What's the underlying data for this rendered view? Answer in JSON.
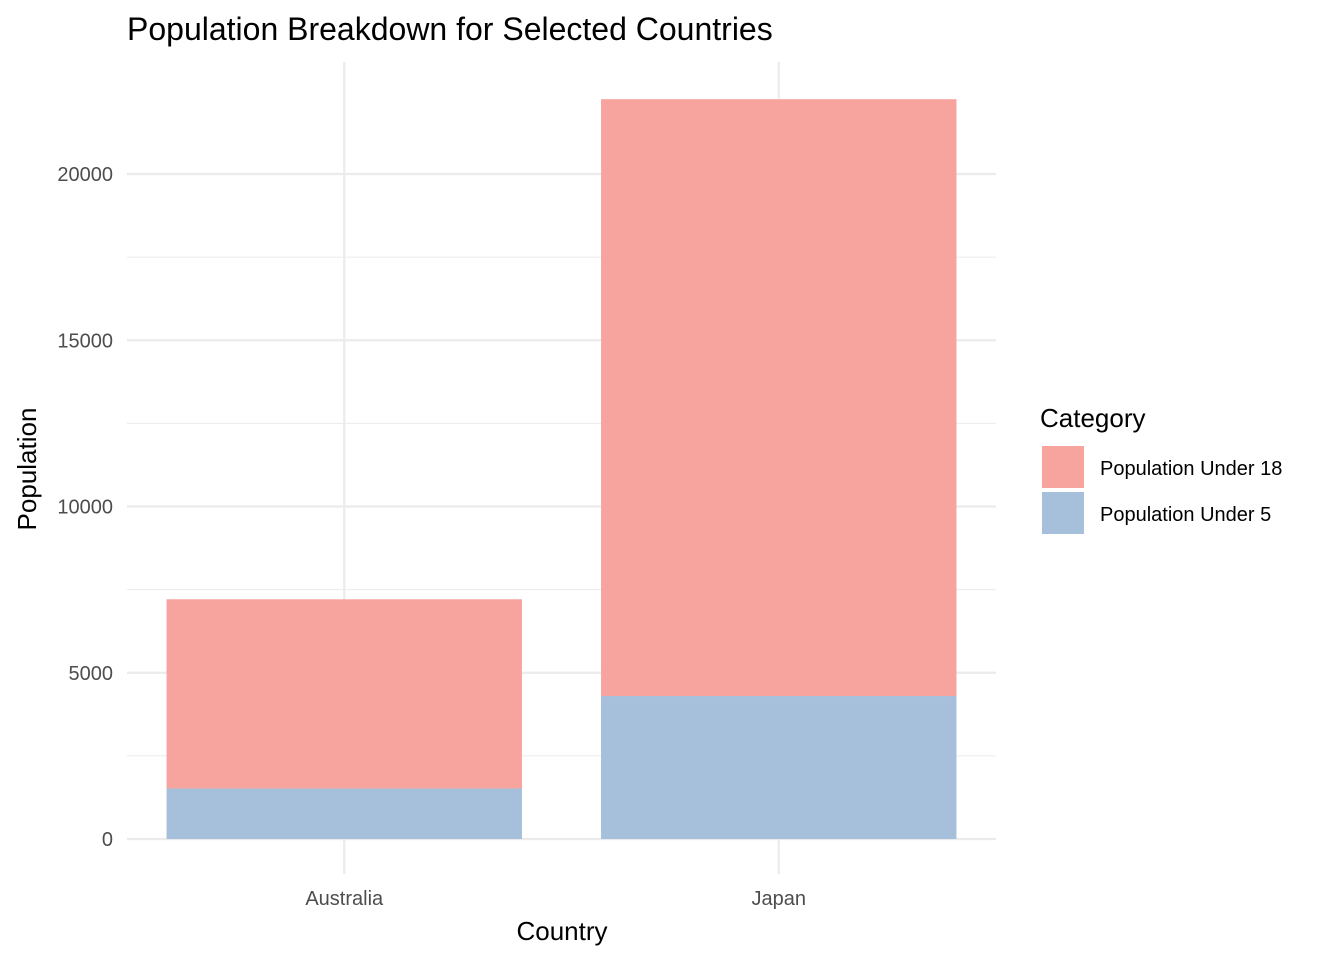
{
  "chart_data": {
    "type": "bar",
    "stacked": true,
    "title": "Population Breakdown for Selected Countries",
    "xlabel": "Country",
    "ylabel": "Population",
    "categories": [
      "Australia",
      "Japan"
    ],
    "series": [
      {
        "name": "Population Under 5",
        "values": [
          1520,
          4300
        ],
        "color": "#a6c0db"
      },
      {
        "name": "Population Under 18",
        "values": [
          5690,
          17950
        ],
        "color": "#f8a49e"
      }
    ],
    "ylim": [
      0,
      22250
    ],
    "yticks": [
      0,
      5000,
      10000,
      15000,
      20000
    ],
    "ytick_labels": [
      "0",
      "5000",
      "10000",
      "15000",
      "20000"
    ],
    "grid": true,
    "legend": {
      "title": "Category",
      "position": "right",
      "entries": [
        "Population Under 18",
        "Population Under 5"
      ]
    }
  }
}
